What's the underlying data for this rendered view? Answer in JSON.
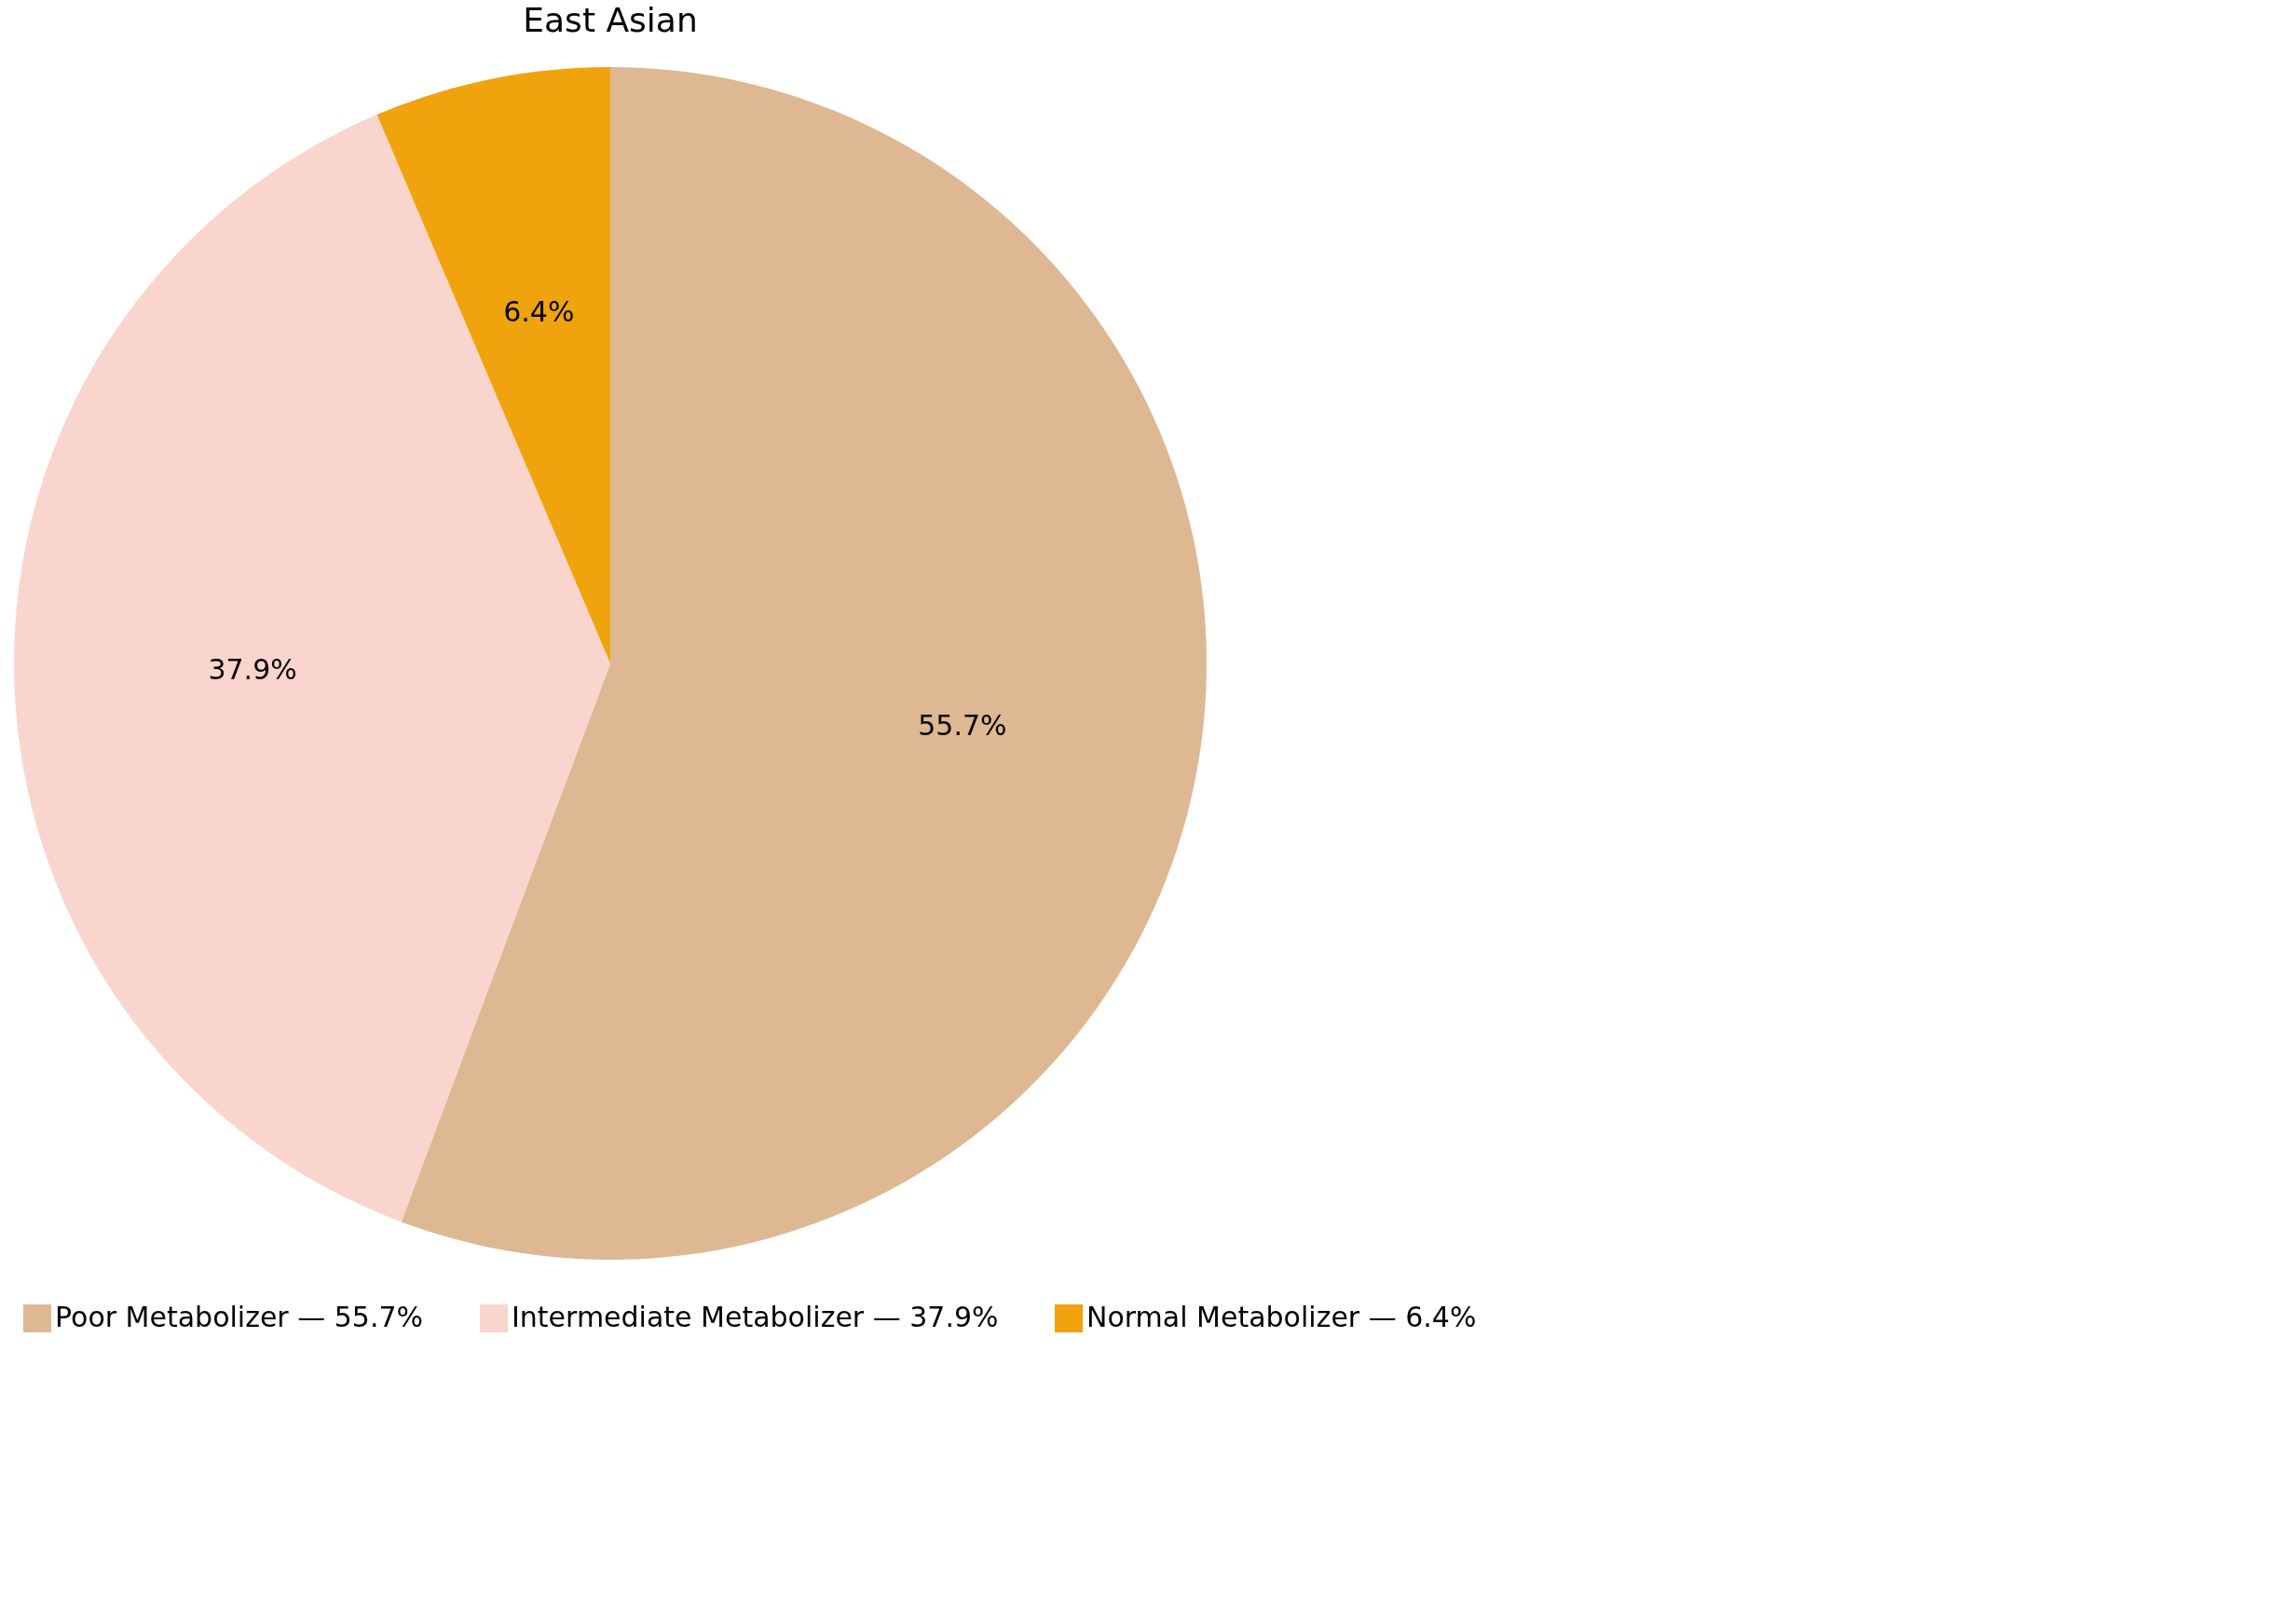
{
  "chart_data": {
    "type": "pie",
    "title": "East Asian",
    "categories": [
      "Poor Metabolizer — 55.7%",
      "Intermediate Metabolizer — 37.9%",
      "Normal Metabolizer — 6.4%"
    ],
    "values": [
      55.7,
      37.9,
      6.4
    ],
    "colors": [
      "#deb892",
      "#fad5ce",
      "#f0a30c"
    ],
    "value_labels": [
      "55.7%",
      "37.9%",
      "6.4%"
    ],
    "legend": "bottom"
  }
}
